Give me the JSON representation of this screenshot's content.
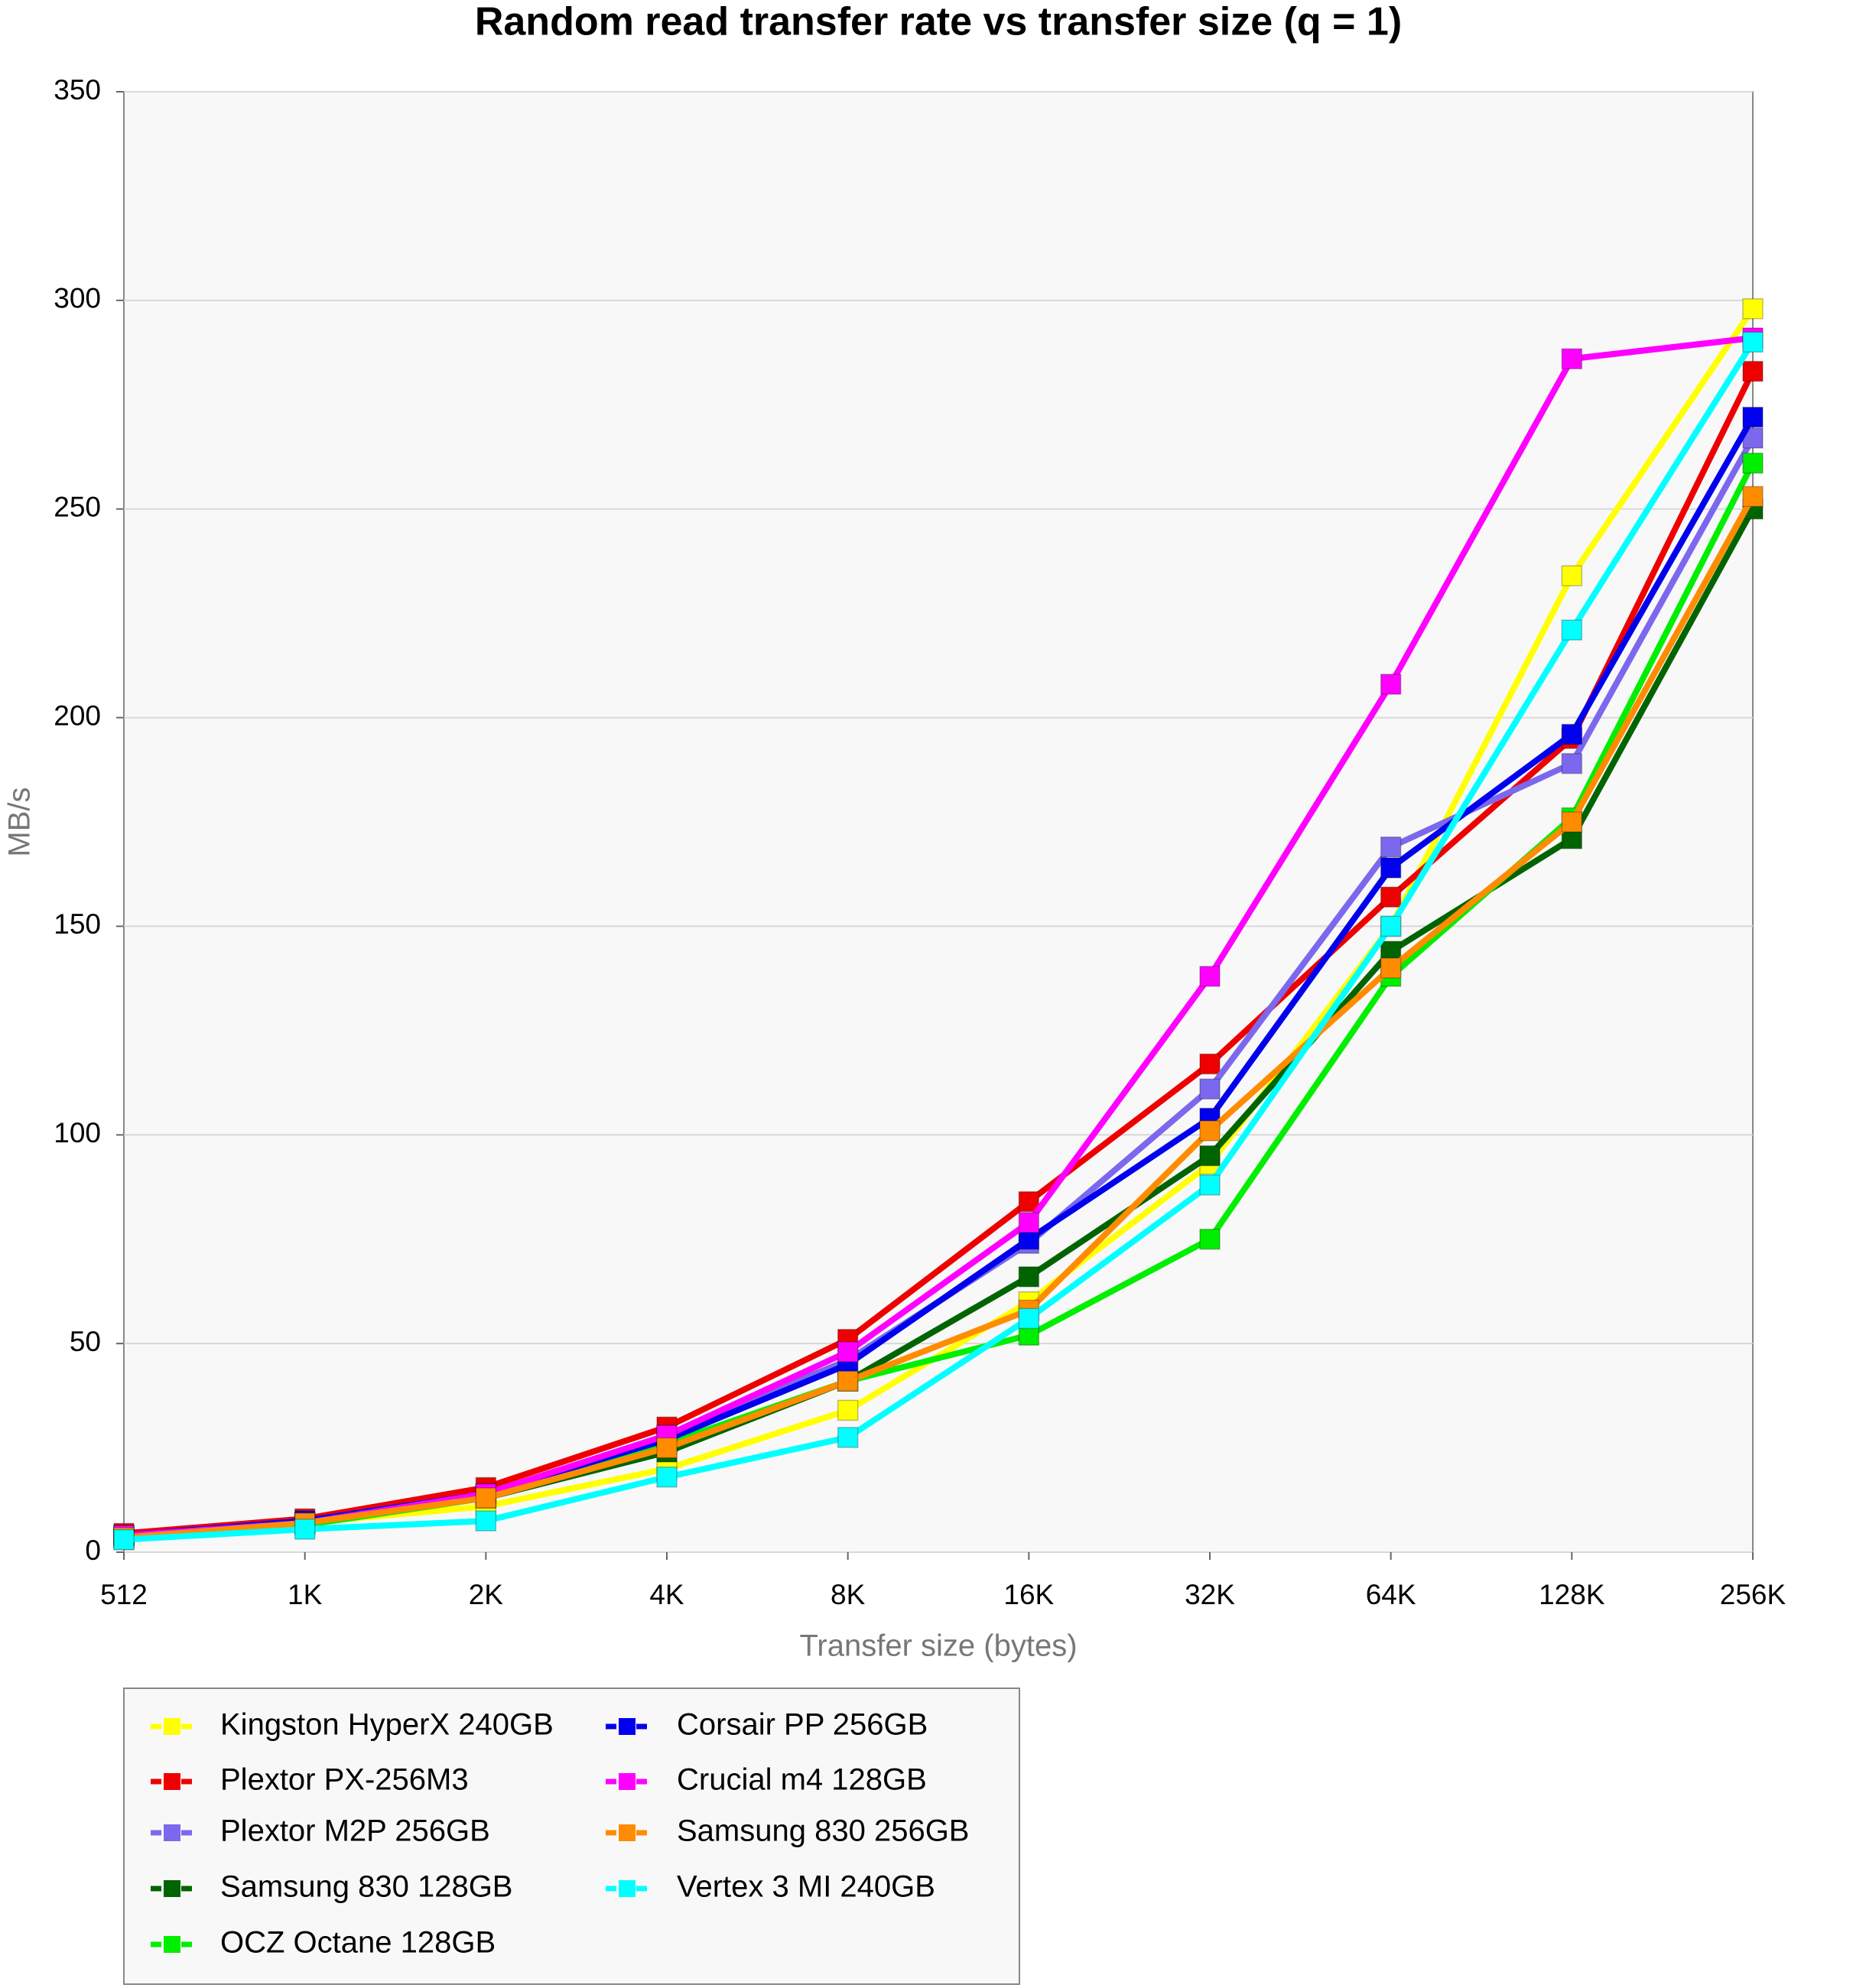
{
  "chart_data": {
    "type": "line",
    "title": "Random read transfer rate vs transfer size (q = 1)",
    "x_label": "Transfer size (bytes)",
    "y_label": "MB/s",
    "categories": [
      "512",
      "1K",
      "2K",
      "4K",
      "8K",
      "16K",
      "32K",
      "64K",
      "128K",
      "256K"
    ],
    "ylim": [
      0,
      350
    ],
    "yticks": [
      0,
      50,
      100,
      150,
      200,
      250,
      300,
      350
    ],
    "grid": true,
    "series": [
      {
        "name": "Kingston HyperX 240GB",
        "color": "#ffff00",
        "values": [
          4,
          7,
          11,
          20,
          34,
          60,
          93,
          150,
          234,
          298
        ]
      },
      {
        "name": "Plextor PX-256M3",
        "color": "#ee0000",
        "values": [
          4.5,
          8,
          15.5,
          30,
          51,
          84,
          117,
          157,
          195,
          283
        ]
      },
      {
        "name": "Plextor M2P 256GB",
        "color": "#7b68ee",
        "values": [
          3.5,
          7,
          14,
          28,
          46,
          74,
          111,
          169,
          189,
          267
        ]
      },
      {
        "name": "Samsung 830 128GB",
        "color": "#006400",
        "values": [
          4,
          7,
          13,
          24,
          41,
          66,
          95,
          144,
          171,
          250
        ]
      },
      {
        "name": "OCZ Octane 128GB",
        "color": "#00ee00",
        "values": [
          3,
          6.5,
          13,
          26,
          41,
          52,
          75,
          138,
          176,
          261
        ]
      },
      {
        "name": "Corsair PP 256GB",
        "color": "#0000ee",
        "values": [
          4,
          7.5,
          14,
          27,
          45,
          75,
          104,
          164,
          196,
          272
        ]
      },
      {
        "name": "Crucial m4 128GB",
        "color": "#ff00ff",
        "values": [
          4,
          7,
          14,
          28,
          48,
          79,
          138,
          208,
          286,
          291
        ]
      },
      {
        "name": "Samsung 830 256GB",
        "color": "#ff8c00",
        "values": [
          3.5,
          7,
          13,
          25,
          41,
          58,
          101,
          140,
          175,
          253
        ]
      },
      {
        "name": "Vertex 3 MI 240GB",
        "color": "#00ffff",
        "values": [
          3,
          5.5,
          7.5,
          18,
          27.5,
          56,
          88,
          150,
          221,
          290
        ]
      }
    ]
  }
}
